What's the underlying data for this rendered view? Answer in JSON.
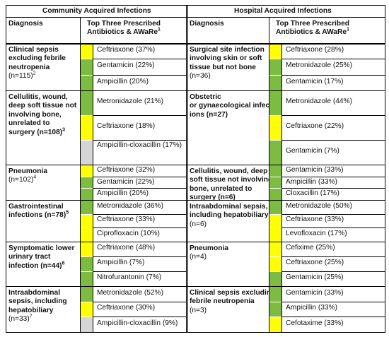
{
  "colors": {
    "access": "#7dbb43",
    "watch": "#ffff00",
    "reserve": "#000000",
    "not_recommended": "#d6d6d6"
  },
  "header": {
    "community_title": "Community Acquired Infections",
    "hospital_title": "Hospital Acquired Infections",
    "diagnosis_label": "Diagnosis",
    "antibiotics_label_line1": "Top Three Prescribed",
    "antibiotics_label_line2": "Antibiotics & AWaRe",
    "antibiotics_sup": "1"
  },
  "community": [
    {
      "diagnosis": [
        "Clinical sepsis",
        "excluding febrile",
        "neutropenia"
      ],
      "count_line": "(n=115)",
      "sup": "2",
      "antibiotics": [
        {
          "name": "Ceftriaxone (37%)",
          "aware": "watch"
        },
        {
          "name": "Gentamicin (22%)",
          "aware": "access"
        },
        {
          "name": "Ampicillin (20%)",
          "aware": "access"
        }
      ]
    },
    {
      "diagnosis": [
        "Cellulitis, wound,",
        "deep soft tissue not",
        "involving bone,",
        "unrelated to"
      ],
      "count_line": "surgery (n=108)",
      "sup": "3",
      "antibiotics": [
        {
          "name": "Metronidazole (21%)",
          "aware": "access"
        },
        {
          "name": "Ceftriaxone (18%)",
          "aware": "watch"
        },
        {
          "name": "Ampicillin-cloxacillin (17%)",
          "aware": "not_recommended"
        }
      ]
    },
    {
      "diagnosis": [
        "Pneumonia"
      ],
      "count_line": "(n=102)",
      "sup": "4",
      "antibiotics": [
        {
          "name": "Ceftriaxone (32%)",
          "aware": "watch"
        },
        {
          "name": "Gentamicin (22%)",
          "aware": "access"
        },
        {
          "name": "Ampicillin (20%)",
          "aware": "access"
        }
      ]
    },
    {
      "diagnosis": [
        "Gastrointestinal"
      ],
      "count_line": "infections (n=78)",
      "sup": "5",
      "antibiotics": [
        {
          "name": "Metronidazole (36%)",
          "aware": "access"
        },
        {
          "name": "Ceftriaxone (33%)",
          "aware": "watch"
        },
        {
          "name": "Ciprofloxacin (10%)",
          "aware": "watch"
        }
      ]
    },
    {
      "diagnosis": [
        "Symptomatic lower",
        "urinary tract"
      ],
      "count_line": "infection (n=44)",
      "sup": "6",
      "antibiotics": [
        {
          "name": "Ceftriaxone (48%)",
          "aware": "watch"
        },
        {
          "name": "Ampicillin (7%)",
          "aware": "access"
        },
        {
          "name": "Nitrofurantonin (7%)",
          "aware": "access"
        }
      ]
    },
    {
      "diagnosis": [
        "Intraabdominal",
        "sepsis, including",
        "hepatobiliary"
      ],
      "count_line": "(n=33)",
      "sup": "7",
      "antibiotics": [
        {
          "name": "Metronidazole (52%)",
          "aware": "access"
        },
        {
          "name": "Ceftriaxone (30%)",
          "aware": "watch"
        },
        {
          "name": "Ampicillin-cloxacillin (9%)",
          "aware": "not_recommended"
        }
      ]
    }
  ],
  "hospital": [
    {
      "diagnosis": [
        "Surgical site infection",
        "involving skin or soft",
        "tissue but not bone"
      ],
      "count_line": "(n=36)",
      "antibiotics": [
        {
          "name": "Ceftriaxone (28%)",
          "aware": "watch"
        },
        {
          "name": "Metronidazole (25%)",
          "aware": "access"
        },
        {
          "name": "Gentamicin (17%)",
          "aware": "access"
        }
      ]
    },
    {
      "diagnosis": [
        "Obstetric",
        "or gynaecological infect",
        "ions (n=27)"
      ],
      "antibiotics": [
        {
          "name": "Metronidazole (44%)",
          "aware": "access"
        },
        {
          "name": "Ceftriaxone (22%)",
          "aware": "watch"
        },
        {
          "name": "Gentamicin (7%)",
          "aware": "access"
        }
      ]
    },
    {
      "diagnosis": [
        "Cellulitis, wound, deep",
        "soft tissue not involving",
        "bone, unrelated to"
      ],
      "count_line": "surgery (n=6)",
      "antibiotics": [
        {
          "name": "Gentamicin (33%)",
          "aware": "access"
        },
        {
          "name": "Ampicillin (33%)",
          "aware": "access"
        },
        {
          "name": "Cloxacillin (17%)",
          "aware": "access"
        }
      ]
    },
    {
      "diagnosis": [
        "Intraabdominal sepsis,",
        "including hepatobiliary"
      ],
      "count_line": "(n=6)",
      "antibiotics": [
        {
          "name": "Metronidazole (50%)",
          "aware": "access"
        },
        {
          "name": "Ceftriaxone (33%)",
          "aware": "watch"
        },
        {
          "name": "Levofloxacin (17%)",
          "aware": "watch"
        }
      ]
    },
    {
      "diagnosis": [
        "Pneumonia"
      ],
      "count_line": "(n=4)",
      "antibiotics": [
        {
          "name": "Cefixime (25%)",
          "aware": "watch"
        },
        {
          "name": "Ceftriaxone (25%)",
          "aware": "watch"
        },
        {
          "name": "Gentamicin (25%)",
          "aware": "access"
        }
      ]
    },
    {
      "diagnosis": [
        "Clinical sepsis excluding",
        "febrile neutropenia"
      ],
      "count_line": "(n=3)",
      "antibiotics": [
        {
          "name": "Gentamicin (33%)",
          "aware": "access"
        },
        {
          "name": "Ampicillin (33%)",
          "aware": "access"
        },
        {
          "name": "Cefotaxime (33%)",
          "aware": "watch"
        }
      ]
    }
  ]
}
